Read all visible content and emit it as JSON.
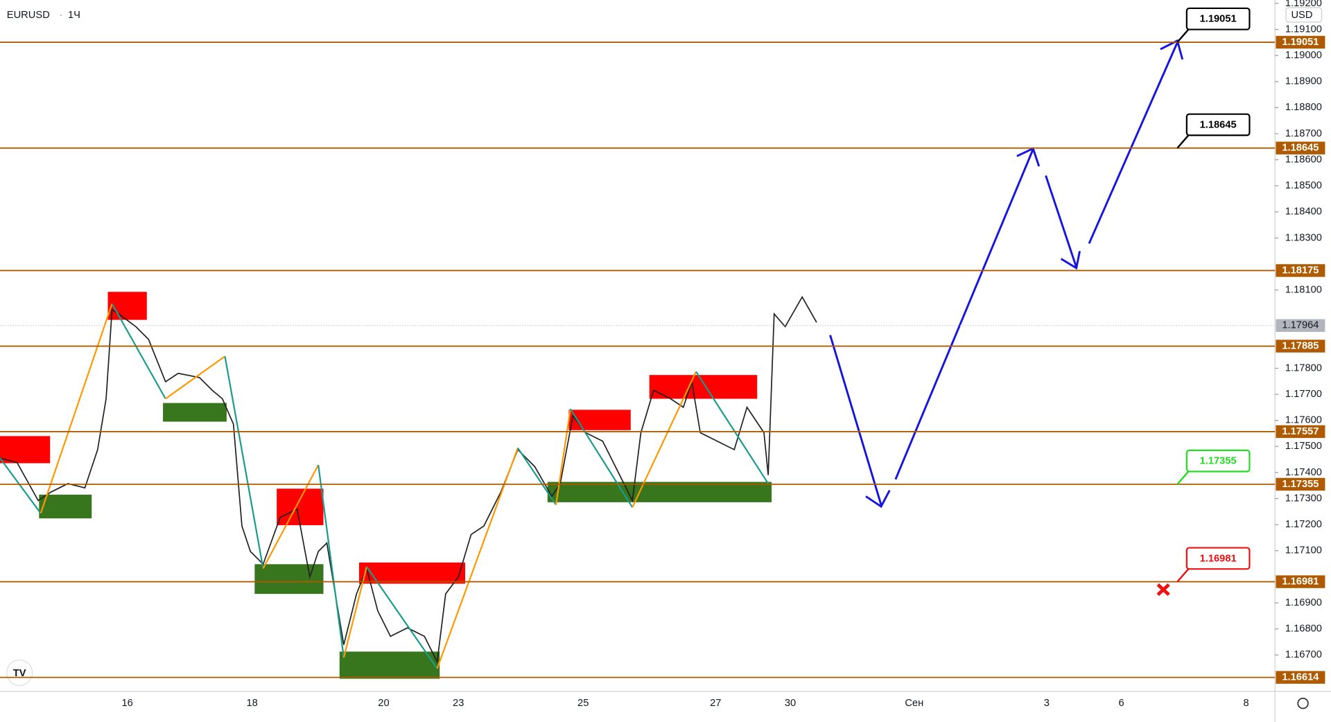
{
  "header": {
    "symbol": "EURUSD",
    "separator": "·",
    "timeframe": "1Ч",
    "currency": "USD"
  },
  "chart_data": {
    "type": "price-levels",
    "ylim": [
      1.1656,
      1.19213
    ],
    "yticks": [
      {
        "value": 1.192,
        "label": "1.19200"
      },
      {
        "value": 1.191,
        "label": "1.19100"
      },
      {
        "value": 1.19,
        "label": "1.19000"
      },
      {
        "value": 1.189,
        "label": "1.18900"
      },
      {
        "value": 1.188,
        "label": "1.18800"
      },
      {
        "value": 1.187,
        "label": "1.18700"
      },
      {
        "value": 1.186,
        "label": "1.18600"
      },
      {
        "value": 1.185,
        "label": "1.18500"
      },
      {
        "value": 1.184,
        "label": "1.18400"
      },
      {
        "value": 1.183,
        "label": "1.18300"
      },
      {
        "value": 1.181,
        "label": "1.18100"
      },
      {
        "value": 1.178,
        "label": "1.17800"
      },
      {
        "value": 1.177,
        "label": "1.17700"
      },
      {
        "value": 1.176,
        "label": "1.17600"
      },
      {
        "value": 1.175,
        "label": "1.17500"
      },
      {
        "value": 1.174,
        "label": "1.17400"
      },
      {
        "value": 1.173,
        "label": "1.17300"
      },
      {
        "value": 1.172,
        "label": "1.17200"
      },
      {
        "value": 1.171,
        "label": "1.17100"
      },
      {
        "value": 1.169,
        "label": "1.16900"
      },
      {
        "value": 1.168,
        "label": "1.16800"
      },
      {
        "value": 1.167,
        "label": "1.16700"
      }
    ],
    "categories": [
      "16",
      "18",
      "20",
      "23",
      "25",
      "27",
      "30",
      "Сен",
      "3",
      "6",
      "8"
    ],
    "levels": [
      1.19051,
      1.18645,
      1.18175,
      1.17885,
      1.17557,
      1.17355,
      1.16981,
      1.16614
    ],
    "level_color": "#b05a00",
    "last_price": 1.17964,
    "callouts": [
      {
        "value": 1.19051,
        "color": "#000000"
      },
      {
        "value": 1.18645,
        "color": "#000000"
      },
      {
        "value": 1.17355,
        "color": "#22dd22"
      },
      {
        "value": 1.16981,
        "color": "#ee1111"
      }
    ]
  }
}
